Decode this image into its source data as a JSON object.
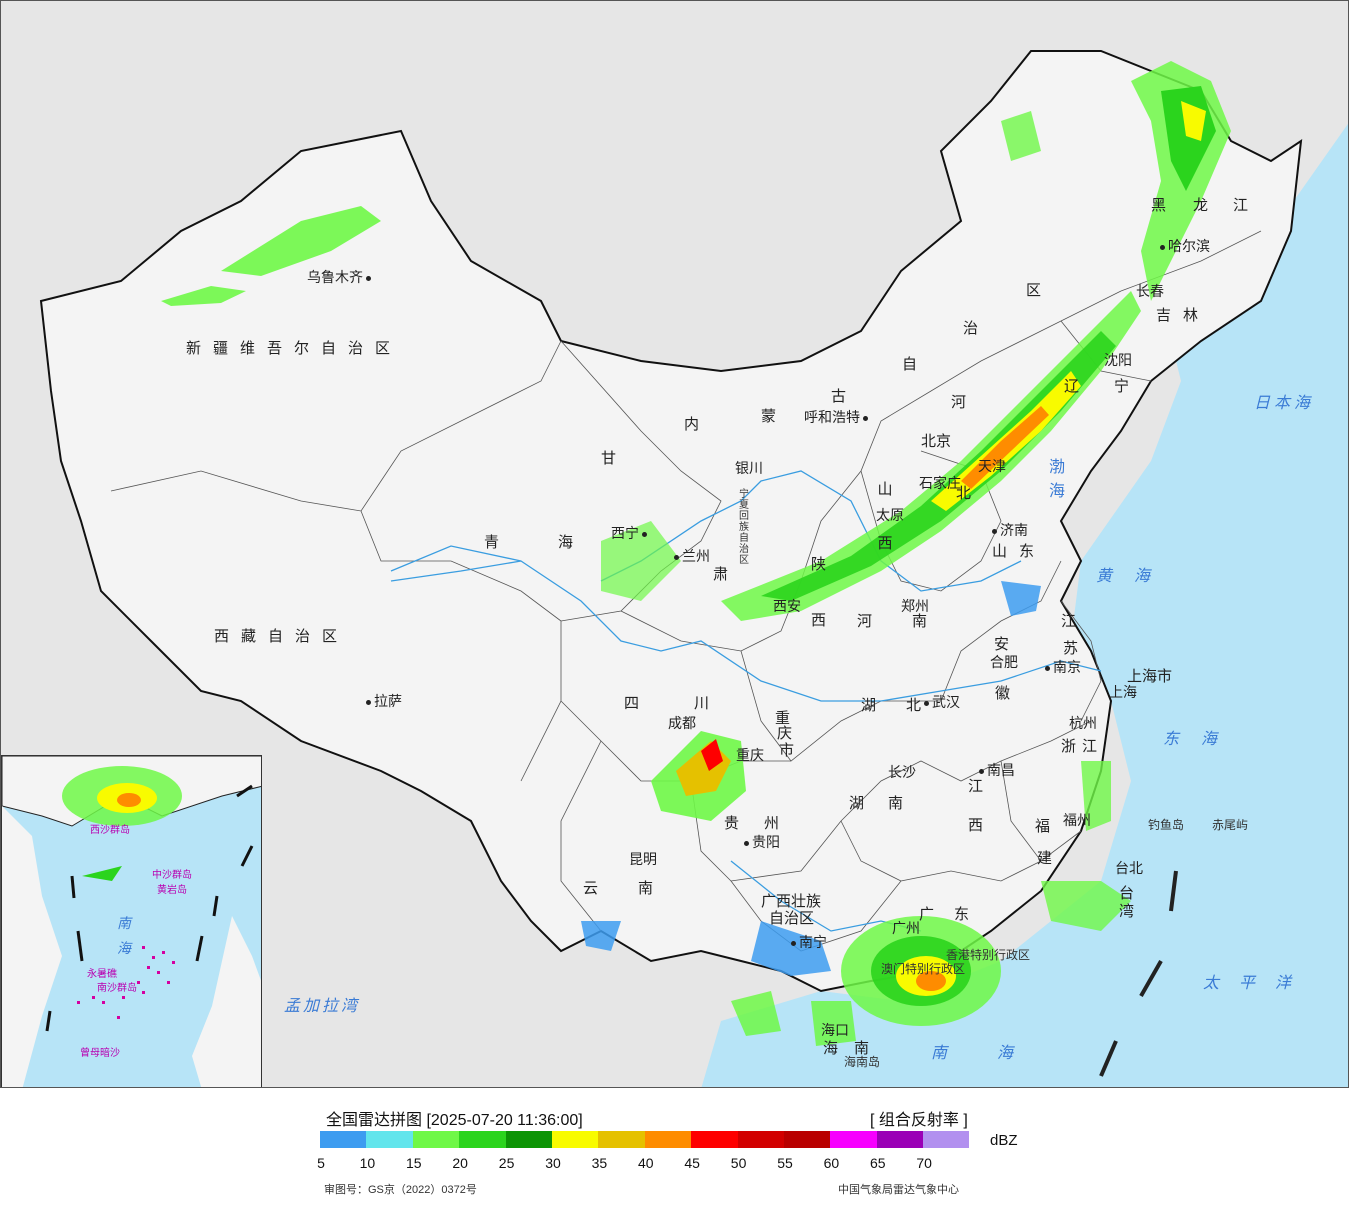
{
  "map": {
    "regions": {
      "xinjiang": "新疆维吾尔自治区",
      "xizang": "西藏自治区",
      "qinghai": "青海",
      "gansu": "甘",
      "gansu2": "肃",
      "neimenggu": [
        "内",
        "蒙",
        "古"
      ],
      "neimenggu_v": [
        "自",
        "治",
        "区"
      ],
      "heilongjiang": [
        "黑",
        "龙",
        "江"
      ],
      "jilin": "吉林",
      "liaoning": [
        "辽",
        "宁"
      ],
      "hebei": [
        "河",
        "北"
      ],
      "shanxi": [
        "山",
        "西"
      ],
      "shaanxi": [
        "陕",
        "西"
      ],
      "henan": "河南",
      "shandong": "山东",
      "jiangsu": [
        "江",
        "苏"
      ],
      "anhui": [
        "安",
        "徽"
      ],
      "hubei": "湖北",
      "sichuan": "四川",
      "chongqing": [
        "重",
        "庆",
        "市"
      ],
      "hunan": "湖南",
      "jiangxi": [
        "江",
        "西"
      ],
      "zhejiang": "浙江",
      "fujian": [
        "福",
        "建"
      ],
      "guizhou": [
        "贵",
        "州"
      ],
      "yunnan": "云南",
      "guangxi1": "广西壮族",
      "guangxi2": "自治区",
      "guangdong": "广东",
      "hainan": "海南",
      "taiwan": [
        "台",
        "湾"
      ],
      "shanghai": "上海市",
      "ningxia": "宁夏回族自治区",
      "tianjin": "天津",
      "hongkong": "香港特别行政区",
      "macau": "澳门特别行政区"
    },
    "cities": [
      {
        "id": "urumqi",
        "name": "乌鲁木齐"
      },
      {
        "id": "lhasa",
        "name": "拉萨"
      },
      {
        "id": "xining",
        "name": "西宁"
      },
      {
        "id": "lanzhou",
        "name": "兰州"
      },
      {
        "id": "yinchuan",
        "name": "银川"
      },
      {
        "id": "hohhot",
        "name": "呼和浩特"
      },
      {
        "id": "harbin",
        "name": "哈尔滨"
      },
      {
        "id": "changchun",
        "name": "长春"
      },
      {
        "id": "shenyang",
        "name": "沈阳"
      },
      {
        "id": "beijing",
        "name": "北京"
      },
      {
        "id": "shijiazhuang",
        "name": "石家庄"
      },
      {
        "id": "taiyuan",
        "name": "太原"
      },
      {
        "id": "jinan",
        "name": "济南"
      },
      {
        "id": "xian",
        "name": "西安"
      },
      {
        "id": "zhengzhou",
        "name": "郑州"
      },
      {
        "id": "hefei",
        "name": "合肥"
      },
      {
        "id": "nanjing",
        "name": "南京"
      },
      {
        "id": "shanghai",
        "name": "上海"
      },
      {
        "id": "hangzhou",
        "name": "杭州"
      },
      {
        "id": "wuhan",
        "name": "武汉"
      },
      {
        "id": "chengdu",
        "name": "成都"
      },
      {
        "id": "chongqing",
        "name": "重庆"
      },
      {
        "id": "changsha",
        "name": "长沙"
      },
      {
        "id": "nanchang",
        "name": "南昌"
      },
      {
        "id": "fuzhou",
        "name": "福州"
      },
      {
        "id": "guiyang",
        "name": "贵阳"
      },
      {
        "id": "kunming",
        "name": "昆明"
      },
      {
        "id": "nanning",
        "name": "南宁"
      },
      {
        "id": "guangzhou",
        "name": "广州"
      },
      {
        "id": "haikou",
        "name": "海口"
      },
      {
        "id": "taibei",
        "name": "台北"
      }
    ],
    "seas": {
      "bohai": "渤海",
      "yellow": "黄海",
      "east": "东海",
      "south": "南海",
      "pacific": "太平洋",
      "japan": "日本海",
      "bengal": "孟加拉湾"
    },
    "islands": {
      "diaoyu": "钓鱼岛",
      "chiwei": "赤尾屿",
      "hainan": "海南岛"
    },
    "inset": {
      "labels": [
        "西沙群岛",
        "中沙群岛",
        "黄岩岛",
        "南",
        "海",
        "永暑礁",
        "南沙群岛",
        "曾母暗沙"
      ]
    }
  },
  "legend": {
    "title": "全国雷达拼图 [2025-07-20 11:36:00]",
    "product": "[ 组合反射率 ]",
    "unit": "dBZ",
    "colors": [
      "#3d9cf0",
      "#62e5ec",
      "#6ff847",
      "#2bd41d",
      "#0c9405",
      "#f8fb00",
      "#e5c100",
      "#fe8c00",
      "#fe0000",
      "#d20000",
      "#b90000",
      "#f700ff",
      "#9a00b6",
      "#b290ef"
    ],
    "ticks": [
      "5",
      "10",
      "15",
      "20",
      "25",
      "30",
      "35",
      "40",
      "45",
      "50",
      "55",
      "60",
      "65",
      "70"
    ],
    "approval": "审图号：GS京（2022）0372号",
    "source": "中国气象局雷达气象中心"
  }
}
